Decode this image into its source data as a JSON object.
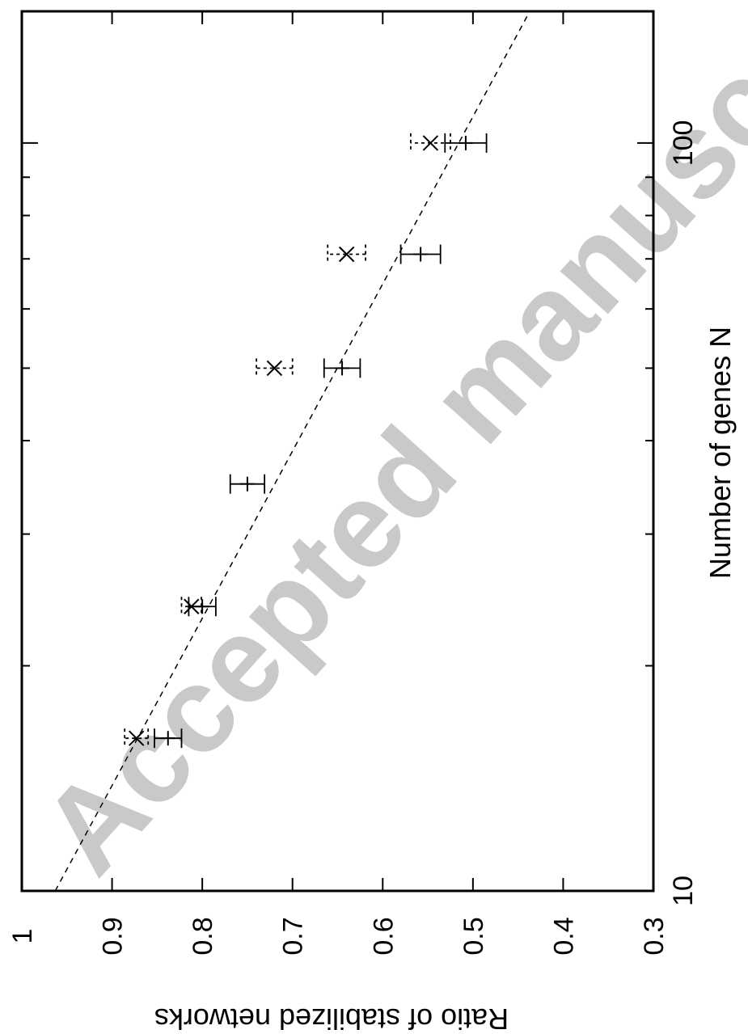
{
  "watermark": "Accepted manuscript",
  "chart_data": {
    "type": "scatter",
    "title": "",
    "xlabel": "Number of genes N",
    "ylabel": "Ratio of stabilized networks",
    "xscale": "log",
    "xlim": [
      10,
      150
    ],
    "ylim": [
      0.3,
      1.0
    ],
    "x_ticks_labeled": [
      10,
      100
    ],
    "x_ticks_minor": [
      20,
      30,
      40,
      50,
      60,
      70,
      80,
      90
    ],
    "y_ticks": [
      0.3,
      0.4,
      0.5,
      0.6,
      0.7,
      0.8,
      0.9,
      1.0
    ],
    "y_tick_labels": [
      "0.3",
      "0.4",
      "0.5",
      "0.6",
      "0.7",
      "0.8",
      "0.9",
      "1"
    ],
    "grid": false,
    "legend": "none",
    "series": [
      {
        "marker": "plus",
        "errorbar_style": "solid",
        "points": [
          {
            "x": 16,
            "y": 0.838,
            "err": 0.015
          },
          {
            "x": 24,
            "y": 0.8,
            "err": 0.015
          },
          {
            "x": 35,
            "y": 0.75,
            "err": 0.019
          },
          {
            "x": 50,
            "y": 0.645,
            "err": 0.02
          },
          {
            "x": 71,
            "y": 0.558,
            "err": 0.022
          },
          {
            "x": 100,
            "y": 0.508,
            "err": 0.023
          }
        ]
      },
      {
        "marker": "cross",
        "errorbar_style": "dashed",
        "points": [
          {
            "x": 16,
            "y": 0.873,
            "err": 0.013
          },
          {
            "x": 24,
            "y": 0.812,
            "err": 0.011
          },
          {
            "x": 50,
            "y": 0.72,
            "err": 0.02
          },
          {
            "x": 71,
            "y": 0.64,
            "err": 0.021
          },
          {
            "x": 100,
            "y": 0.547,
            "err": 0.022
          }
        ]
      },
      {
        "type": "line",
        "style": "dashed",
        "points": [
          {
            "x": 10,
            "y": 0.963
          },
          {
            "x": 150,
            "y": 0.437
          }
        ]
      }
    ]
  }
}
